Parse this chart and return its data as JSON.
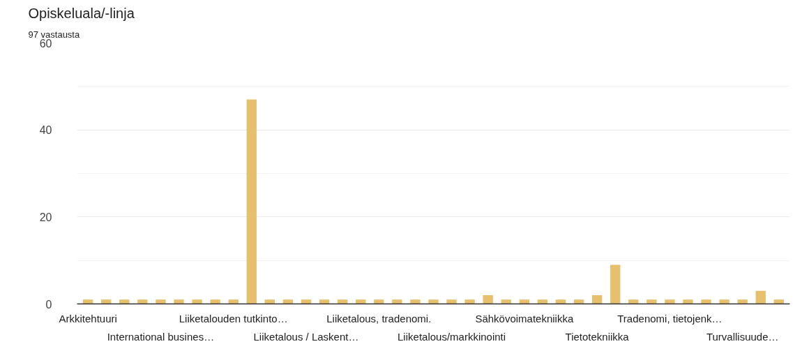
{
  "chart_data": {
    "type": "bar",
    "title": "Opiskeluala/-linja",
    "subtitle": "97 vastausta",
    "categories": [
      "Arkkitehtuuri",
      null,
      null,
      null,
      "International busines…",
      null,
      null,
      null,
      "Liiketalouden tutkinto…",
      null,
      null,
      null,
      "Liiketalous / Laskent…",
      null,
      null,
      null,
      "Liiketalous, tradenomi.",
      null,
      null,
      null,
      "Liiketalous/markkinointi",
      null,
      null,
      null,
      "Sähkövoimatekniikka",
      null,
      null,
      null,
      "Tietotekniikka",
      null,
      null,
      null,
      "Tradenomi, tietojenk…",
      null,
      null,
      null,
      "Turvallisuude…",
      null,
      null
    ],
    "values": [
      1,
      1,
      1,
      1,
      1,
      1,
      1,
      1,
      1,
      47,
      1,
      1,
      1,
      1,
      1,
      1,
      1,
      1,
      1,
      1,
      1,
      1,
      2,
      1,
      1,
      1,
      1,
      1,
      2,
      9,
      1,
      1,
      1,
      1,
      1,
      1,
      1,
      3,
      1
    ],
    "color": "#e6c06c",
    "ylim": [
      0,
      60
    ],
    "yticks": [
      0,
      20,
      40,
      60
    ],
    "grid": "y"
  }
}
